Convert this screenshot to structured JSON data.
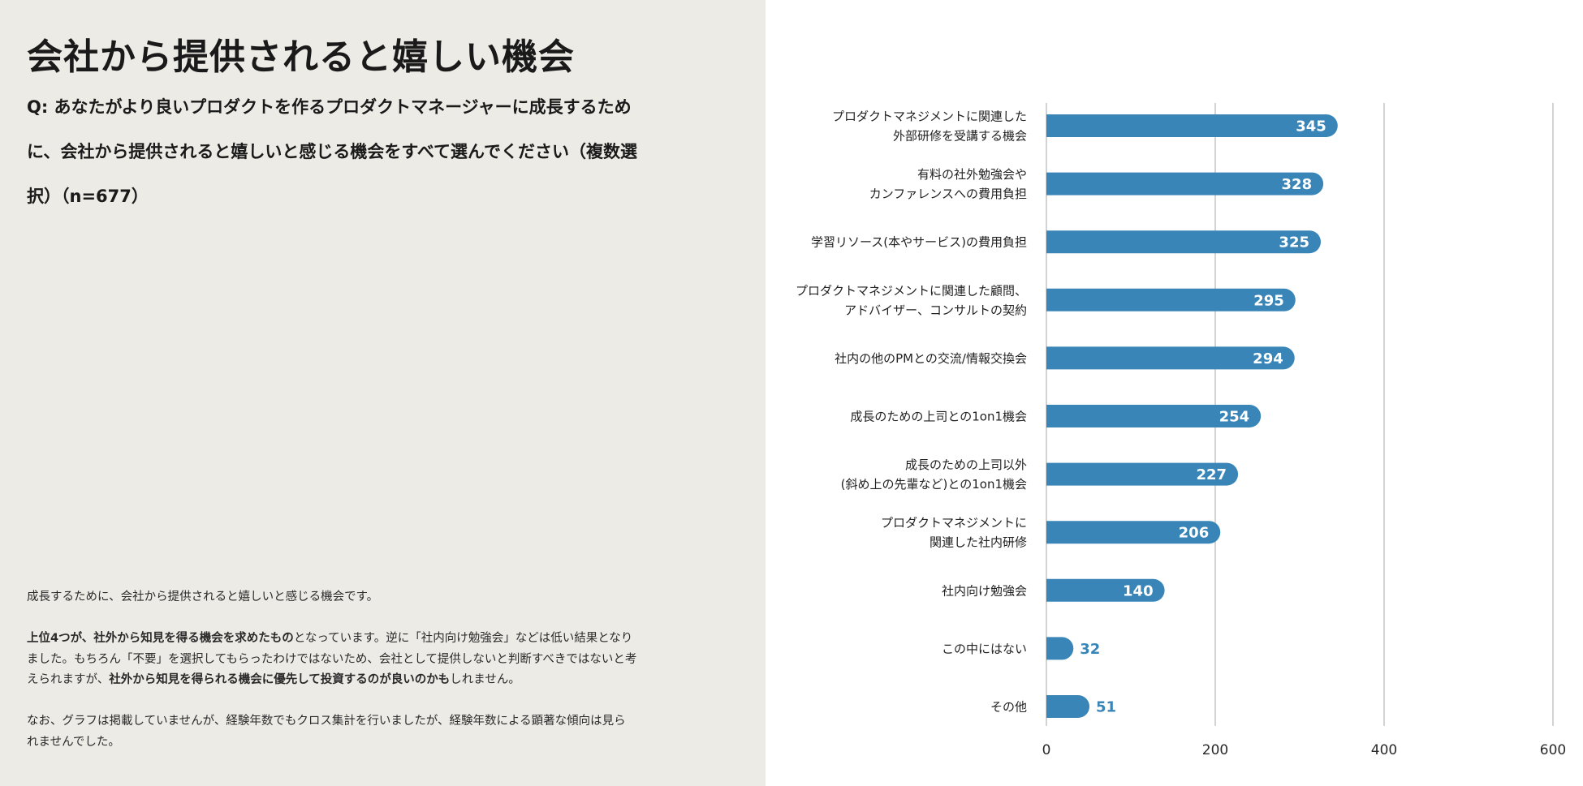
{
  "header": {
    "title": "会社から提供されると嬉しい機会",
    "question": "Q: あなたがより良いプロダクトを作るプロダクトマネージャーに成長するために、会社から提供されると嬉しいと感じる機会をすべて選んでください（複数選択）（n=677）"
  },
  "description": {
    "p1": "成長するために、会社から提供されると嬉しいと感じる機会です。",
    "p2_bold1": "上位4つが、社外から知見を得る機会を求めたもの",
    "p2_text1": "となっています。逆に「社内向け勉強会」などは低い結果となりました。もちろん「不要」を選択してもらったわけではないため、会社として提供しないと判断すべきではないと考えられますが、",
    "p2_bold2": "社外から知見を得られる機会に優先して投資するのが良いのかも",
    "p2_text2": "しれません。",
    "p3": "なお、グラフは掲載していませんが、経験年数でもクロス集計を行いましたが、経験年数による顕著な傾向は見られませんでした。"
  },
  "colors": {
    "left_panel_bg": "#ecebe6",
    "bar": "#3a85b8",
    "bar_label_inside": "#ffffff",
    "bar_label_outside": "#3a85b8",
    "gridline": "#d3d3d3"
  },
  "chart_data": {
    "type": "bar",
    "orientation": "horizontal",
    "categories": [
      [
        "プロダクトマネジメントに関連した",
        "外部研修を受講する機会"
      ],
      [
        "有料の社外勉強会や",
        "カンファレンスへの費用負担"
      ],
      [
        "学習リソース(本やサービス)の費用負担"
      ],
      [
        "プロダクトマネジメントに関連した顧問、",
        "アドバイザー、コンサルトの契約"
      ],
      [
        "社内の他のPMとの交流/情報交換会"
      ],
      [
        "成長のための上司との1on1機会"
      ],
      [
        "成長のための上司以外",
        "(斜め上の先輩など)との1on1機会"
      ],
      [
        "プロダクトマネジメントに",
        "関連した社内研修"
      ],
      [
        "社内向け勉強会"
      ],
      [
        "この中にはない"
      ],
      [
        "その他"
      ]
    ],
    "values": [
      345,
      328,
      325,
      295,
      294,
      254,
      227,
      206,
      140,
      32,
      51
    ],
    "x_ticks": [
      0,
      200,
      400,
      600
    ],
    "xlim": [
      0,
      600
    ],
    "grid": true,
    "data_labels": true
  }
}
